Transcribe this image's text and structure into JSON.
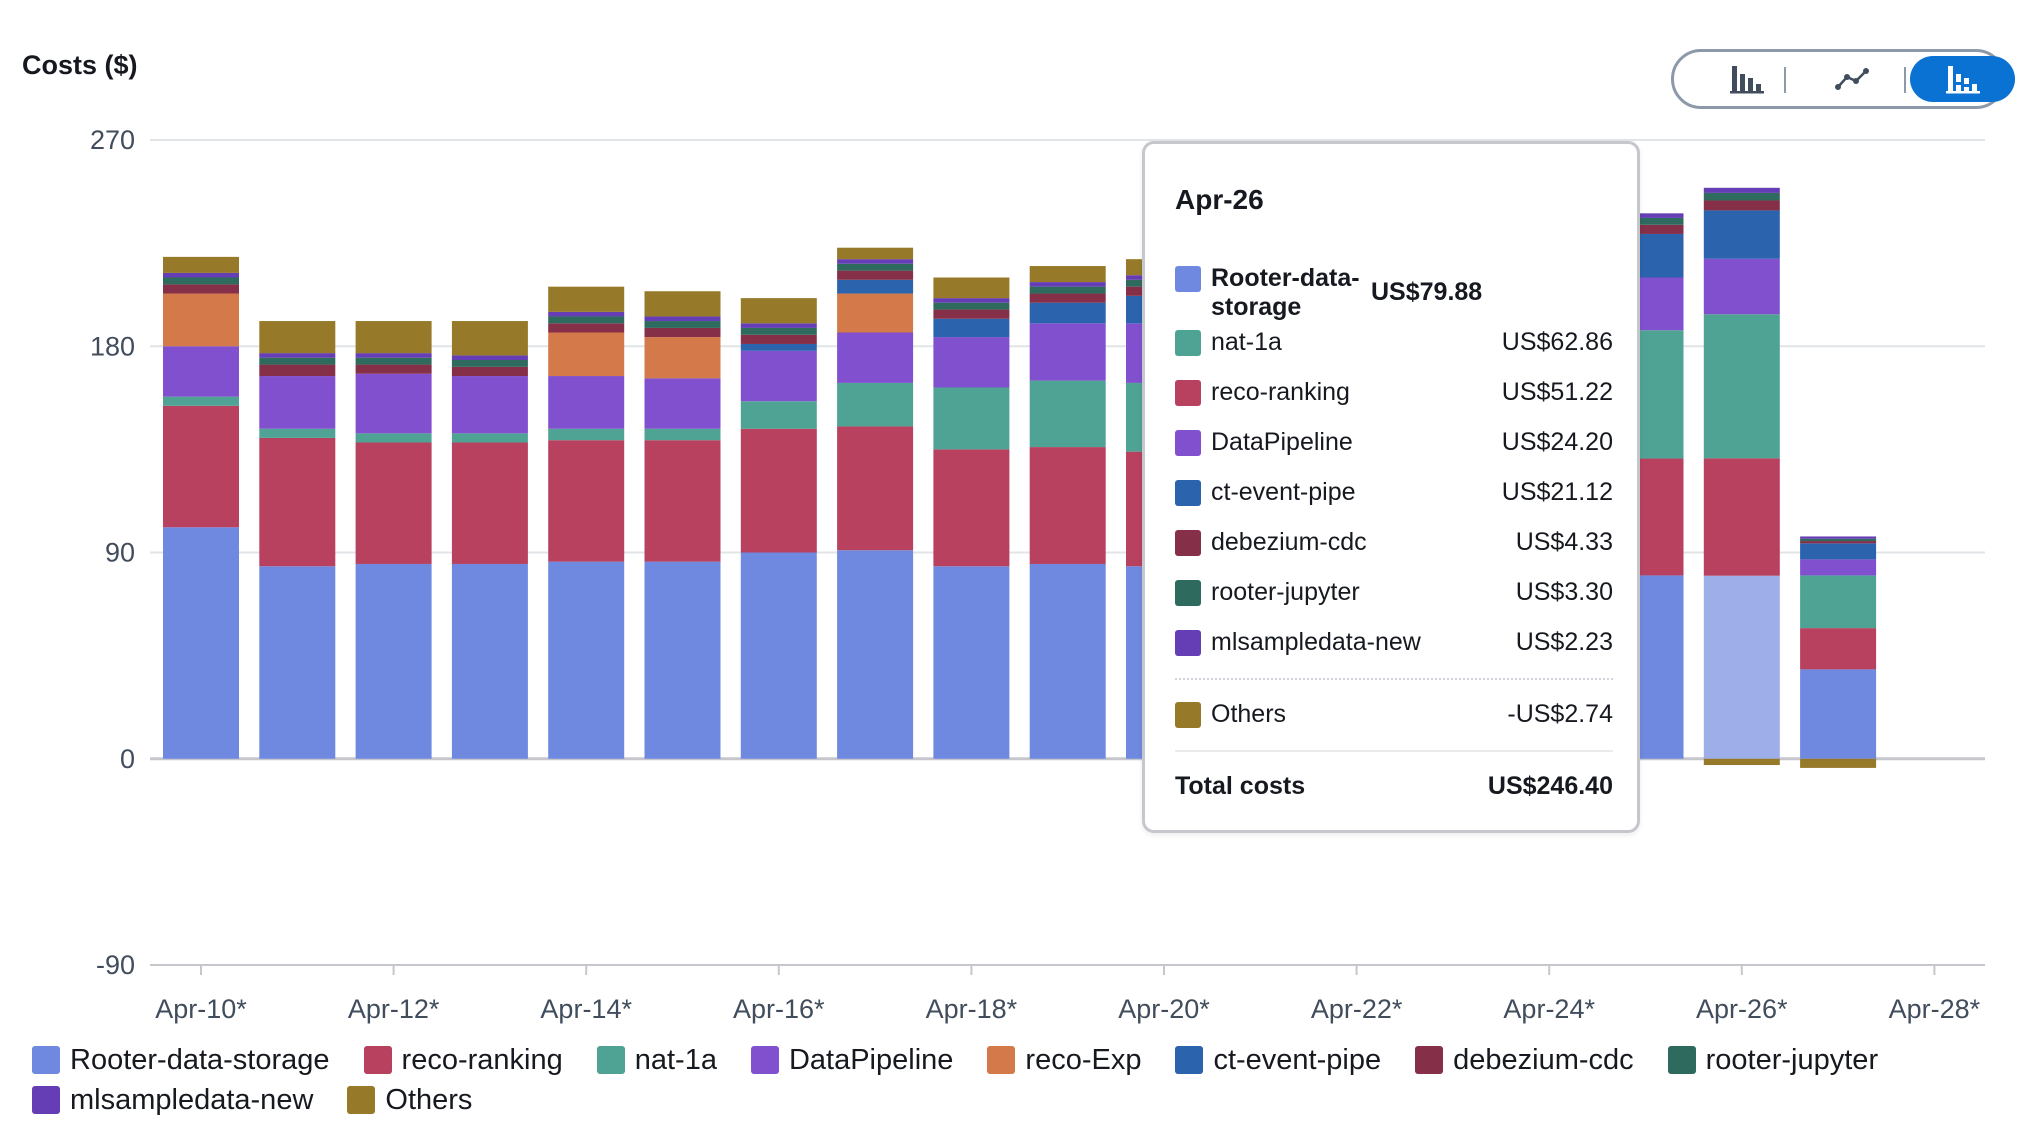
{
  "chart_data": {
    "type": "bar",
    "stacked": true,
    "ylabel": "Costs ($)",
    "ylim": [
      -90,
      270
    ],
    "yticks": [
      270,
      180,
      90,
      0,
      -90
    ],
    "xticks": [
      "Apr-10*",
      "Apr-12*",
      "Apr-14*",
      "Apr-16*",
      "Apr-18*",
      "Apr-20*",
      "Apr-22*",
      "Apr-24*",
      "Apr-26*",
      "Apr-28*"
    ],
    "categories": [
      "Apr-10",
      "Apr-11",
      "Apr-12",
      "Apr-13",
      "Apr-14",
      "Apr-15",
      "Apr-16",
      "Apr-17",
      "Apr-18",
      "Apr-19",
      "Apr-20",
      "Apr-21",
      "Apr-22",
      "Apr-23",
      "Apr-24",
      "Apr-25",
      "Apr-26",
      "Apr-27"
    ],
    "legend_position": "bottom",
    "grid": true,
    "highlighted_category": "Apr-26",
    "series": [
      {
        "name": "Rooter-data-storage",
        "color": "#6f89e0",
        "values": [
          101,
          84,
          85,
          85,
          86,
          86,
          90,
          91,
          84,
          85,
          84,
          0,
          0,
          0,
          0,
          80,
          79.88,
          39
        ]
      },
      {
        "name": "reco-ranking",
        "color": "#b7415f",
        "values": [
          53,
          56,
          53,
          53,
          53,
          53,
          54,
          54,
          51,
          51,
          50,
          0,
          0,
          0,
          0,
          51,
          51.22,
          18
        ]
      },
      {
        "name": "nat-1a",
        "color": "#4fa394",
        "values": [
          4,
          4,
          4,
          4,
          5,
          5,
          12,
          19,
          27,
          29,
          30,
          0,
          0,
          0,
          0,
          56,
          62.86,
          23
        ]
      },
      {
        "name": "DataPipeline",
        "color": "#8150cf",
        "values": [
          22,
          23,
          26,
          25,
          23,
          22,
          22,
          22,
          22,
          25,
          26,
          0,
          0,
          0,
          0,
          23,
          24.2,
          7
        ]
      },
      {
        "name": "reco-Exp",
        "color": "#d4794a",
        "values": [
          23,
          0,
          0,
          0,
          19,
          18,
          0,
          17,
          0,
          0,
          0,
          0,
          0,
          0,
          0,
          0,
          0,
          0
        ]
      },
      {
        "name": "ct-event-pipe",
        "color": "#2c63ad",
        "values": [
          0,
          0,
          0,
          0,
          0,
          0,
          3,
          6,
          8,
          9,
          12,
          0,
          0,
          0,
          0,
          19,
          21.12,
          7
        ]
      },
      {
        "name": "debezium-cdc",
        "color": "#862f48",
        "values": [
          4,
          5,
          4,
          4,
          4,
          4,
          4,
          4,
          4,
          4,
          4,
          0,
          0,
          0,
          0,
          4,
          4.33,
          1
        ]
      },
      {
        "name": "rooter-jupyter",
        "color": "#2e6b5e",
        "values": [
          3,
          3,
          3,
          3,
          3,
          3,
          3,
          3,
          3,
          3,
          3,
          0,
          0,
          0,
          0,
          3,
          3.3,
          1
        ]
      },
      {
        "name": "mlsampledata-new",
        "color": "#653db4",
        "values": [
          2,
          2,
          2,
          2,
          2,
          2,
          2,
          2,
          2,
          2,
          2,
          0,
          0,
          0,
          0,
          2,
          2.23,
          1
        ]
      },
      {
        "name": "Others",
        "color": "#967a2a",
        "values": [
          7,
          14,
          14,
          15,
          11,
          11,
          11,
          5,
          9,
          7,
          7,
          0,
          0,
          0,
          0,
          0,
          -2.74,
          -4
        ]
      }
    ]
  },
  "tooltip": {
    "title": "Apr-26",
    "rows": [
      {
        "name": "Rooter-data-storage",
        "label": "Rooter-data-storage",
        "value": "US$79.88"
      },
      {
        "name": "nat-1a",
        "label": "nat-1a",
        "value": "US$62.86"
      },
      {
        "name": "reco-ranking",
        "label": "reco-ranking",
        "value": "US$51.22"
      },
      {
        "name": "DataPipeline",
        "label": "DataPipeline",
        "value": "US$24.20"
      },
      {
        "name": "ct-event-pipe",
        "label": "ct-event-pipe",
        "value": "US$21.12"
      },
      {
        "name": "debezium-cdc",
        "label": "debezium-cdc",
        "value": "US$4.33"
      },
      {
        "name": "rooter-jupyter",
        "label": "rooter-jupyter",
        "value": "US$3.30"
      },
      {
        "name": "mlsampledata-new",
        "label": "mlsampledata-new",
        "value": "US$2.23"
      }
    ],
    "others": {
      "label": "Others",
      "value": "-US$2.74"
    },
    "total": {
      "label": "Total costs",
      "value": "US$246.40"
    }
  },
  "chart_type_toggle": {
    "options": [
      {
        "icon": "bar-chart-icon",
        "active": false
      },
      {
        "icon": "line-chart-icon",
        "active": false
      },
      {
        "icon": "stacked-bar-chart-icon",
        "active": true
      }
    ],
    "active_color": "#0972d3"
  }
}
